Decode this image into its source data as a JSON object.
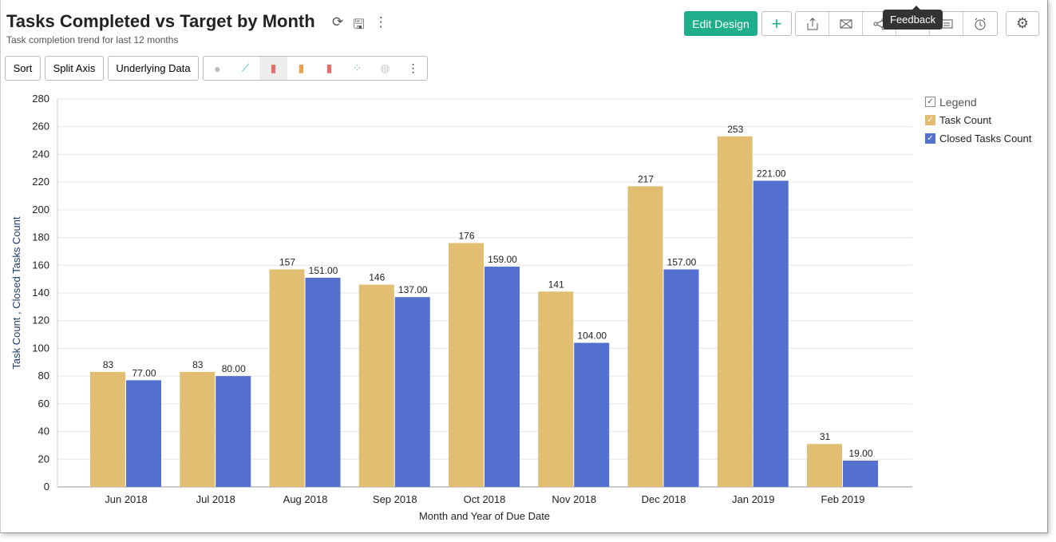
{
  "header": {
    "title": "Tasks Completed vs Target by Month",
    "subtitle": "Task completion trend for last 12 months",
    "edit_design": "Edit Design",
    "tooltip": "Feedback"
  },
  "toolbar": {
    "sort": "Sort",
    "split_axis": "Split Axis",
    "underlying_data": "Underlying Data"
  },
  "legend": {
    "title": "Legend",
    "items": [
      "Task Count",
      "Closed Tasks Count"
    ]
  },
  "colors": {
    "task": "#E2BE73",
    "closed": "#5470CF",
    "accent": "#1FAE8C"
  },
  "chart_data": {
    "type": "bar",
    "title": "Tasks Completed vs Target by Month",
    "xlabel": "Month and Year of Due Date",
    "ylabel": "Task Count , Closed Tasks Count",
    "ylim": [
      0,
      280
    ],
    "yticks": [
      0,
      20,
      40,
      60,
      80,
      100,
      120,
      140,
      160,
      180,
      200,
      220,
      240,
      260,
      280
    ],
    "categories": [
      "Jun 2018",
      "Jul 2018",
      "Aug 2018",
      "Sep 2018",
      "Oct 2018",
      "Nov 2018",
      "Dec 2018",
      "Jan 2019",
      "Feb 2019"
    ],
    "series": [
      {
        "name": "Task Count",
        "values": [
          83,
          83,
          157,
          146,
          176,
          141,
          217,
          253,
          31
        ],
        "labels": [
          "83",
          "83",
          "157",
          "146",
          "176",
          "141",
          "217",
          "253",
          "31"
        ]
      },
      {
        "name": "Closed Tasks Count",
        "values": [
          77,
          80,
          151,
          137,
          159,
          104,
          157,
          221,
          19
        ],
        "labels": [
          "77.00",
          "80.00",
          "151.00",
          "137.00",
          "159.00",
          "104.00",
          "157.00",
          "221.00",
          "19.00"
        ]
      }
    ],
    "legend_position": "right",
    "grid": true
  }
}
